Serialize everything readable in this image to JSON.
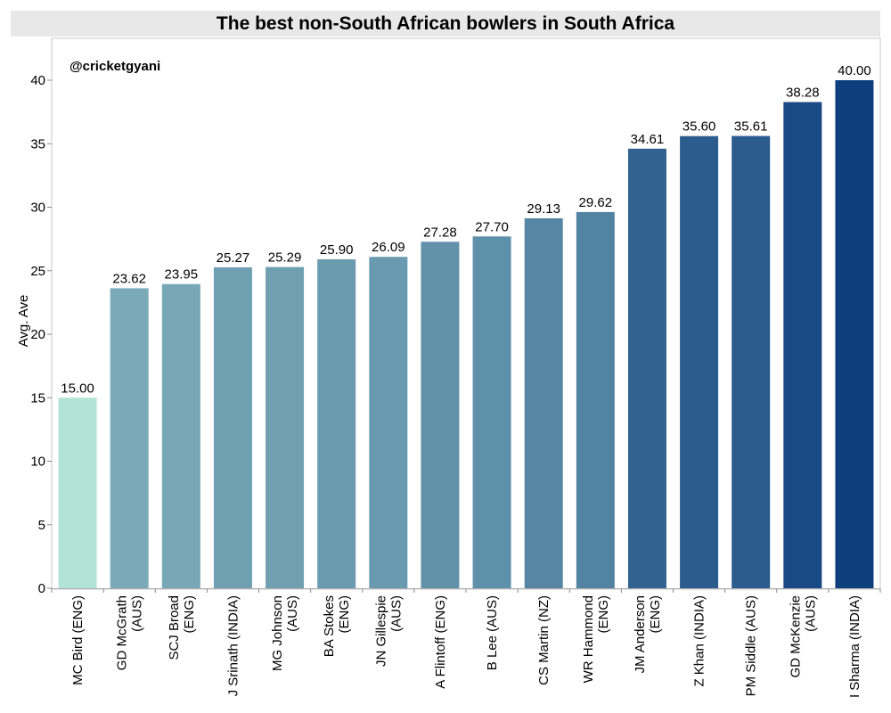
{
  "chart_data": {
    "type": "bar",
    "title": "The best non-South African bowlers in South Africa",
    "ylabel": "Avg. Ave",
    "xlabel": "",
    "annotation": "@cricketgyani",
    "ylim": [
      0,
      43
    ],
    "yticks": [
      0,
      5,
      10,
      15,
      20,
      25,
      30,
      35,
      40
    ],
    "grid": false,
    "categories": [
      [
        "MC Bird (ENG)"
      ],
      [
        "GD McGrath",
        "(AUS)"
      ],
      [
        "SCJ Broad",
        "(ENG)"
      ],
      [
        "J Srinath (INDIA)"
      ],
      [
        "MG Johnson",
        "(AUS)"
      ],
      [
        "BA Stokes",
        "(ENG)"
      ],
      [
        "JN Gillespie",
        "(AUS)"
      ],
      [
        "A Flintoff (ENG)"
      ],
      [
        "B Lee (AUS)"
      ],
      [
        "CS Martin (NZ)"
      ],
      [
        "WR Hammond",
        "(ENG)"
      ],
      [
        "JM Anderson",
        "(ENG)"
      ],
      [
        "Z Khan (INDIA)"
      ],
      [
        "PM Siddle (AUS)"
      ],
      [
        "GD McKenzie",
        "(AUS)"
      ],
      [
        "I Sharma (INDIA)"
      ]
    ],
    "values": [
      15.0,
      23.62,
      23.95,
      25.27,
      25.29,
      25.9,
      26.09,
      27.28,
      27.7,
      29.13,
      29.62,
      34.61,
      35.6,
      35.61,
      38.28,
      40.0
    ],
    "value_labels": [
      "15.00",
      "23.62",
      "23.95",
      "25.27",
      "25.29",
      "25.90",
      "26.09",
      "27.28",
      "27.70",
      "29.13",
      "29.62",
      "34.61",
      "35.60",
      "35.61",
      "38.28",
      "40.00"
    ],
    "color_scale": [
      "#b3e3d6",
      "#0e3f7d"
    ]
  }
}
